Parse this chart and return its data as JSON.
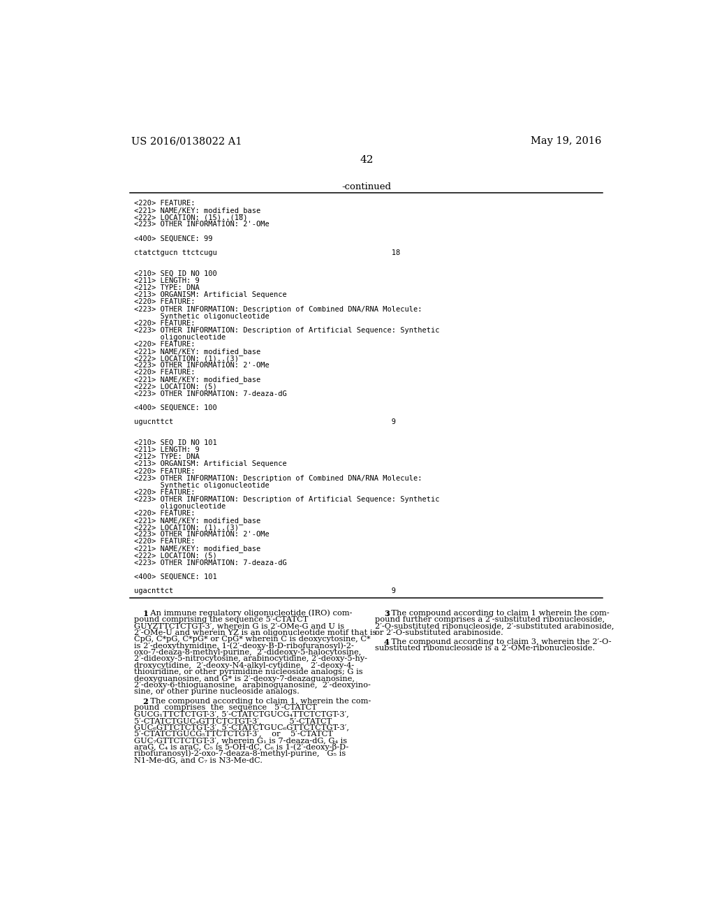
{
  "background_color": "#ffffff",
  "left_header": "US 2016/0138022 A1",
  "right_header": "May 19, 2016",
  "page_number": "42",
  "continued_label": "-continued",
  "mono_lines": [
    "<220> FEATURE:",
    "<221> NAME/KEY: modified_base",
    "<222> LOCATION: (15)..(18)",
    "<223> OTHER INFORMATION: 2'-OMe",
    "",
    "<400> SEQUENCE: 99",
    "",
    "ctatctgucn ttctcugu                                        18",
    "",
    "",
    "<210> SEQ ID NO 100",
    "<211> LENGTH: 9",
    "<212> TYPE: DNA",
    "<213> ORGANISM: Artificial Sequence",
    "<220> FEATURE:",
    "<223> OTHER INFORMATION: Description of Combined DNA/RNA Molecule:",
    "      Synthetic oligonucleotide",
    "<220> FEATURE:",
    "<223> OTHER INFORMATION: Description of Artificial Sequence: Synthetic",
    "      oligonucleotide",
    "<220> FEATURE:",
    "<221> NAME/KEY: modified_base",
    "<222> LOCATION: (1)..(3)",
    "<223> OTHER INFORMATION: 2'-OMe",
    "<220> FEATURE:",
    "<221> NAME/KEY: modified_base",
    "<222> LOCATION: (5)",
    "<223> OTHER INFORMATION: 7-deaza-dG",
    "",
    "<400> SEQUENCE: 100",
    "",
    "ugucnttct                                                  9",
    "",
    "",
    "<210> SEQ ID NO 101",
    "<211> LENGTH: 9",
    "<212> TYPE: DNA",
    "<213> ORGANISM: Artificial Sequence",
    "<220> FEATURE:",
    "<223> OTHER INFORMATION: Description of Combined DNA/RNA Molecule:",
    "      Synthetic oligonucleotide",
    "<220> FEATURE:",
    "<223> OTHER INFORMATION: Description of Artificial Sequence: Synthetic",
    "      oligonucleotide",
    "<220> FEATURE:",
    "<221> NAME/KEY: modified_base",
    "<222> LOCATION: (1)..(3)",
    "<223> OTHER INFORMATION: 2'-OMe",
    "<220> FEATURE:",
    "<221> NAME/KEY: modified_base",
    "<222> LOCATION: (5)",
    "<223> OTHER INFORMATION: 7-deaza-dG",
    "",
    "<400> SEQUENCE: 101",
    "",
    "ugacnttct                                                  9"
  ],
  "claim1_lines": [
    [
      "indent",
      "1",
      ": An immune regulatory oligonucleotide (IRO) com-"
    ],
    [
      "cont",
      "",
      "pound comprising the sequence 5′-CTATCT"
    ],
    [
      "cont",
      "",
      "GUYZTTCTCTGT-3′, wherein G is 2′-OMe-G and U is"
    ],
    [
      "cont",
      "",
      "2′-OMe-U and wherein YZ is an oligonucleotide motif that is"
    ],
    [
      "cont",
      "",
      "CpG, C*pG, C*pG* or CpG* wherein C is deoxycytosine, C*"
    ],
    [
      "cont",
      "",
      "is 2′-deoxythymidine, 1-(2′-deoxy-B-D-ribofuranosyl)-2-"
    ],
    [
      "cont",
      "",
      "oxo-7-deaza-8-methyl-purine,  2′-dideoxy-5-halocytosine,"
    ],
    [
      "cont",
      "",
      "2′-dideoxy-5-nitrocytosine, arabinocytidine, 2′-deoxy-5-hy-"
    ],
    [
      "cont",
      "",
      "droxycytidine,  2′-deoxy-N4-alkyl-cytidine,   2′-deoxy-4-"
    ],
    [
      "cont",
      "",
      "thiouridine, or other pyrimidine nucleoside analogs; G is"
    ],
    [
      "cont",
      "",
      "deoxyguanosine, and G* is 2′-deoxy-7-deazaguanosine,"
    ],
    [
      "cont",
      "",
      "2′-deoxy-6-thioguanosine,  arabinoguanosine,  2′-deoxyino-"
    ],
    [
      "cont",
      "",
      "sine, or other purine nucleoside analogs."
    ]
  ],
  "claim2_lines": [
    [
      "indent",
      "2",
      ": The compound according to claim 1, wherein the com-"
    ],
    [
      "cont",
      "",
      "pound  comprises  the  sequence   5′-CTATCT"
    ],
    [
      "cont",
      "",
      "GUCG₁TTCTCTGT-3′, 5′-CTATCTGUCG₄TTCTCTGT-3′,"
    ],
    [
      "cont",
      "",
      "5′-CTATCTGUC₄GTTCTCTGT-3′,           5′-CTATCT"
    ],
    [
      "cont",
      "",
      "GUC₆GTTCTCTGT-3′, 5′-CTATCTGUC₆GTTCTCTGT-3′,"
    ],
    [
      "cont",
      "",
      "5′-CTATCTGUCG₅TTCTCTGT-3′,    or    5′-CTATCT"
    ],
    [
      "cont",
      "",
      "GUC₇GTTCTCTGT-3′, wherein G₁ is 7-deaza-dG, G₄ is"
    ],
    [
      "cont",
      "",
      "araG, C₄ is araC, C₅ is 5-OH-dC, C₆ is 1-(2′-deoxy-β-D-"
    ],
    [
      "cont",
      "",
      "ribofuranosyl)-2-oxo-7-deaza-8-methyl-purine,   G₅ is"
    ],
    [
      "cont",
      "",
      "N1-Me-dG, and C₇ is N3-Me-dC."
    ]
  ],
  "claim3_lines": [
    [
      "indent",
      "3",
      ": The compound according to claim 1 wherein the com-"
    ],
    [
      "cont",
      "",
      "pound further comprises a 2′-substituted ribonucleoside,"
    ],
    [
      "cont",
      "",
      "2′-O-substituted ribonucleoside, 2′-substituted arabinoside,"
    ],
    [
      "cont",
      "",
      "or 2′-O-substituted arabinoside."
    ]
  ],
  "claim4_lines": [
    [
      "indent",
      "4",
      ": The compound according to claim 3, wherein the 2′-O-"
    ],
    [
      "cont",
      "",
      "substituted ribonucleoside is a 2′-OMe-ribonucleoside."
    ]
  ]
}
